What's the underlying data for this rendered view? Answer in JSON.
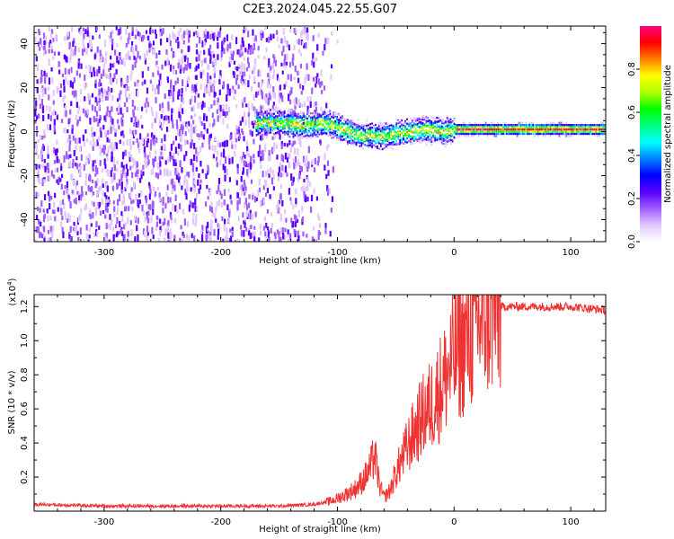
{
  "title": "C2E3.2024.045.22.55.G07",
  "chart_data": [
    {
      "type": "heatmap",
      "xlabel": "Height of straight line (km)",
      "ylabel": "Frequency (Hz)",
      "xlim": [
        -360,
        130
      ],
      "ylim": [
        -50,
        48
      ],
      "x_ticks": [
        -300,
        -200,
        -100,
        0,
        100
      ],
      "y_ticks": [
        -40,
        -20,
        0,
        20,
        40
      ],
      "grid": false,
      "colorbar": {
        "label": "Normalized spectral amplitude",
        "range": [
          0,
          1
        ],
        "ticks": [
          "0.0",
          "0.2",
          "0.4",
          "0.6",
          "0.8"
        ],
        "colors": [
          "#ffffff",
          "#e0c8ff",
          "#a05cff",
          "#5a00ff",
          "#0000ff",
          "#0080ff",
          "#00ffff",
          "#00ff80",
          "#00ff00",
          "#b0ff00",
          "#ffff00",
          "#ff8000",
          "#ff0000",
          "#ff0080"
        ]
      },
      "noise_region_x": [
        -360,
        -110
      ],
      "signal_start_x": -170,
      "signal_ridge": [
        {
          "x": -170,
          "f": 4
        },
        {
          "x": -150,
          "f": 4
        },
        {
          "x": -130,
          "f": 3
        },
        {
          "x": -110,
          "f": 4
        },
        {
          "x": -100,
          "f": 2
        },
        {
          "x": -90,
          "f": 0
        },
        {
          "x": -80,
          "f": -2
        },
        {
          "x": -70,
          "f": -2
        },
        {
          "x": -60,
          "f": -2
        },
        {
          "x": -50,
          "f": -1
        },
        {
          "x": -40,
          "f": 0
        },
        {
          "x": -30,
          "f": 1
        },
        {
          "x": -20,
          "f": 1
        },
        {
          "x": -10,
          "f": 0
        },
        {
          "x": 0,
          "f": 1
        },
        {
          "x": 20,
          "f": 1
        },
        {
          "x": 50,
          "f": 1
        },
        {
          "x": 80,
          "f": 1
        },
        {
          "x": 100,
          "f": 1
        },
        {
          "x": 130,
          "f": 1
        }
      ]
    },
    {
      "type": "line",
      "xlabel": "Height of straight line (km)",
      "ylabel": "SNR (10 * v/v)",
      "y_scale_label": "(x10",
      "y_scale_exp": "4",
      "y_scale_close": ")",
      "xlim": [
        -360,
        130
      ],
      "ylim": [
        0,
        1.27
      ],
      "x_ticks": [
        -300,
        -200,
        -100,
        0,
        100
      ],
      "y_ticks": [
        "0.2",
        "0.4",
        "0.6",
        "0.8",
        "1.0",
        "1.2"
      ],
      "grid": false,
      "color": "#ee3333",
      "series": [
        {
          "x": [
            -360,
            -300,
            -250,
            -200,
            -150,
            -120,
            -105,
            -95,
            -85,
            -78,
            -72,
            -68,
            -64,
            -60,
            -55,
            -50,
            -45,
            -40,
            -35,
            -30,
            -25,
            -20,
            -15,
            -10,
            -5,
            0,
            5,
            10,
            15,
            20,
            25,
            30,
            35,
            40,
            50,
            60,
            80,
            100,
            130
          ],
          "values": [
            0.04,
            0.03,
            0.03,
            0.03,
            0.03,
            0.04,
            0.06,
            0.09,
            0.13,
            0.18,
            0.25,
            0.33,
            0.15,
            0.08,
            0.12,
            0.22,
            0.3,
            0.38,
            0.45,
            0.52,
            0.58,
            0.62,
            0.68,
            0.75,
            0.82,
            0.9,
            0.95,
            1.0,
            1.05,
            1.1,
            1.14,
            1.17,
            1.19,
            1.2,
            1.2,
            1.2,
            1.2,
            1.2,
            1.18
          ]
        }
      ]
    }
  ]
}
